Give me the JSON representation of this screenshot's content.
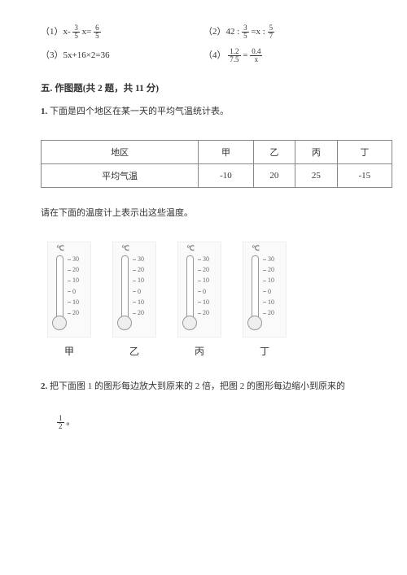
{
  "equations": {
    "e1_pre": "（1）x- ",
    "e1_mid": " x= ",
    "e1_f1n": "3",
    "e1_f1d": "5",
    "e1_f2n": "6",
    "e1_f2d": "5",
    "e2_pre": "（2）42 : ",
    "e2_mid": " =x : ",
    "e2_f1n": "3",
    "e2_f1d": "5",
    "e2_f2n": "5",
    "e2_f2d": "7",
    "e3": "（3）5x+16×2=36",
    "e4_pre": "（4）",
    "e4_f1n": "1.2",
    "e4_f1d": "7.5",
    "e4_eq": " = ",
    "e4_f2n": "0.4",
    "e4_f2d": "x"
  },
  "section_title": "五. 作图题(共 2 题，共 11 分)",
  "q1_num": "1. ",
  "q1_text": "下面是四个地区在某一天的平均气温统计表。",
  "table": {
    "h1": "地区",
    "h2": "甲",
    "h3": "乙",
    "h4": "丙",
    "h5": "丁",
    "r1": "平均气温",
    "r2": "-10",
    "r3": "20",
    "r4": "25",
    "r5": "-15"
  },
  "q1b": "请在下面的温度计上表示出这些温度。",
  "thermo": {
    "unit": "℃",
    "ticks": [
      "30",
      "20",
      "10",
      "0",
      "10",
      "20"
    ],
    "labels": [
      "甲",
      "乙",
      "丙",
      "丁"
    ]
  },
  "q2_num": "2. ",
  "q2_text": "把下面图 1 的图形每边放大到原来的 2 倍，把图 2 的图形每边缩小到原来的",
  "q2_f_n": "1",
  "q2_f_d": "2",
  "q2_end": " 。"
}
